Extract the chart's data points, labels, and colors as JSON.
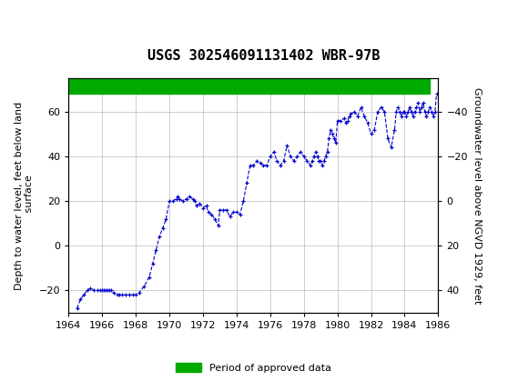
{
  "title": "USGS 302546091131402 WBR-97B",
  "ylabel_left": "Depth to water level, feet below land\n surface",
  "ylabel_right": "Groundwater level above NGVD 1929, feet",
  "ylim_left": [
    -30,
    75
  ],
  "ylim_right": [
    50,
    -55
  ],
  "xlim": [
    1964,
    1986
  ],
  "xticks": [
    1964,
    1966,
    1968,
    1970,
    1972,
    1974,
    1976,
    1978,
    1980,
    1982,
    1984,
    1986
  ],
  "yticks_left": [
    -20,
    0,
    20,
    40,
    60
  ],
  "yticks_right": [
    40,
    20,
    0,
    -20,
    -40
  ],
  "line_color": "#0000CC",
  "marker": "+",
  "linestyle": "--",
  "grid_color": "#BBBBBB",
  "background_color": "#FFFFFF",
  "header_color": "#006633",
  "legend_label": "Period of approved data",
  "legend_color": "#00AA00",
  "title_fontsize": 11,
  "axis_label_fontsize": 8,
  "tick_fontsize": 8,
  "green_bar_xmin": 1964,
  "green_bar_xmax": 1985.5,
  "data_x": [
    1964.5,
    1964.7,
    1964.9,
    1965.1,
    1965.3,
    1965.5,
    1965.7,
    1965.9,
    1966.0,
    1966.1,
    1966.2,
    1966.3,
    1966.4,
    1966.5,
    1966.7,
    1966.9,
    1967.0,
    1967.2,
    1967.4,
    1967.6,
    1967.8,
    1968.0,
    1968.2,
    1968.5,
    1968.8,
    1969.0,
    1969.2,
    1969.4,
    1969.6,
    1969.8,
    1970.0,
    1970.2,
    1970.4,
    1970.5,
    1970.6,
    1970.8,
    1971.0,
    1971.2,
    1971.4,
    1971.5,
    1971.6,
    1971.8,
    1972.0,
    1972.2,
    1972.3,
    1972.5,
    1972.7,
    1972.9,
    1973.0,
    1973.2,
    1973.4,
    1973.6,
    1973.8,
    1974.0,
    1974.2,
    1974.4,
    1974.6,
    1974.8,
    1975.0,
    1975.2,
    1975.4,
    1975.6,
    1975.8,
    1976.0,
    1976.2,
    1976.4,
    1976.6,
    1976.8,
    1977.0,
    1977.2,
    1977.4,
    1977.6,
    1977.8,
    1978.0,
    1978.2,
    1978.4,
    1978.5,
    1978.6,
    1978.7,
    1978.8,
    1978.9,
    1979.0,
    1979.1,
    1979.2,
    1979.3,
    1979.4,
    1979.5,
    1979.6,
    1979.7,
    1979.8,
    1979.9,
    1980.0,
    1980.2,
    1980.4,
    1980.5,
    1980.6,
    1980.7,
    1980.8,
    1981.0,
    1981.2,
    1981.4,
    1981.6,
    1981.8,
    1982.0,
    1982.2,
    1982.4,
    1982.6,
    1982.8,
    1983.0,
    1983.2,
    1983.4,
    1983.5,
    1983.6,
    1983.7,
    1983.8,
    1983.9,
    1984.0,
    1984.1,
    1984.2,
    1984.3,
    1984.4,
    1984.5,
    1984.6,
    1984.7,
    1984.8,
    1984.9,
    1985.0,
    1985.1,
    1985.2,
    1985.3,
    1985.4,
    1985.5,
    1985.6,
    1985.7,
    1985.8,
    1985.9
  ],
  "data_y": [
    -28,
    -24,
    -22,
    -20,
    -19,
    -20,
    -20,
    -20,
    -20,
    -20,
    -20,
    -20,
    -20,
    -20,
    -21,
    -22,
    -22,
    -22,
    -22,
    -22,
    -22,
    -22,
    -21,
    -18,
    -14,
    -8,
    -2,
    4,
    8,
    12,
    20,
    20,
    21,
    22,
    21,
    20,
    21,
    22,
    21,
    20,
    18,
    19,
    17,
    18,
    15,
    14,
    12,
    9,
    16,
    16,
    16,
    13,
    15,
    15,
    14,
    20,
    28,
    36,
    36,
    38,
    37,
    36,
    36,
    40,
    42,
    38,
    36,
    38,
    45,
    40,
    38,
    40,
    42,
    40,
    38,
    36,
    38,
    40,
    42,
    40,
    38,
    38,
    36,
    38,
    40,
    42,
    48,
    52,
    50,
    48,
    46,
    56,
    56,
    57,
    55,
    56,
    58,
    59,
    60,
    58,
    62,
    58,
    55,
    50,
    52,
    60,
    62,
    60,
    48,
    44,
    52,
    60,
    62,
    60,
    58,
    60,
    60,
    58,
    60,
    62,
    60,
    58,
    60,
    62,
    64,
    60,
    62,
    64,
    60,
    58,
    60,
    62,
    60,
    58,
    60,
    68
  ]
}
